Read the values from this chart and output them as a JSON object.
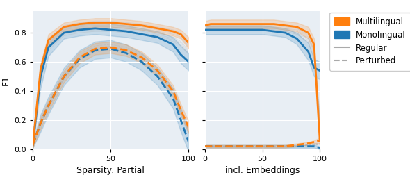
{
  "orange_color": "#FF7F0E",
  "blue_color": "#1F77B4",
  "gray_color": "#aaaaaa",
  "fill_alpha": 0.18,
  "gray_fill_alpha": 0.12,
  "line_alpha_individual": 0.25,
  "lw_main": 2.0,
  "lw_ind": 0.7,
  "left_x": [
    0,
    5,
    10,
    20,
    30,
    40,
    50,
    60,
    70,
    80,
    90,
    95,
    100
  ],
  "left_orange_solid_mean": [
    0.03,
    0.55,
    0.75,
    0.84,
    0.86,
    0.87,
    0.87,
    0.86,
    0.85,
    0.83,
    0.81,
    0.79,
    0.73
  ],
  "left_orange_solid_upper": [
    0.05,
    0.59,
    0.79,
    0.87,
    0.89,
    0.9,
    0.9,
    0.89,
    0.88,
    0.86,
    0.84,
    0.82,
    0.77
  ],
  "left_orange_solid_lower": [
    0.01,
    0.51,
    0.71,
    0.81,
    0.83,
    0.84,
    0.84,
    0.83,
    0.82,
    0.8,
    0.78,
    0.76,
    0.69
  ],
  "left_blue_solid_mean": [
    0.03,
    0.5,
    0.7,
    0.8,
    0.82,
    0.83,
    0.82,
    0.81,
    0.79,
    0.77,
    0.72,
    0.65,
    0.6
  ],
  "left_blue_solid_upper": [
    0.05,
    0.58,
    0.76,
    0.84,
    0.86,
    0.87,
    0.86,
    0.85,
    0.83,
    0.81,
    0.77,
    0.71,
    0.66
  ],
  "left_blue_solid_lower": [
    0.01,
    0.42,
    0.64,
    0.76,
    0.78,
    0.79,
    0.78,
    0.77,
    0.75,
    0.73,
    0.67,
    0.59,
    0.54
  ],
  "left_orange_dashed_mean": [
    0.03,
    0.18,
    0.3,
    0.5,
    0.63,
    0.69,
    0.7,
    0.68,
    0.63,
    0.54,
    0.4,
    0.27,
    0.15
  ],
  "left_orange_dashed_upper": [
    0.05,
    0.22,
    0.34,
    0.54,
    0.67,
    0.73,
    0.74,
    0.72,
    0.67,
    0.58,
    0.44,
    0.31,
    0.19
  ],
  "left_orange_dashed_lower": [
    0.01,
    0.14,
    0.26,
    0.46,
    0.59,
    0.65,
    0.66,
    0.64,
    0.59,
    0.5,
    0.36,
    0.23,
    0.11
  ],
  "left_blue_dashed_mean": [
    0.03,
    0.18,
    0.3,
    0.5,
    0.62,
    0.68,
    0.69,
    0.66,
    0.6,
    0.5,
    0.35,
    0.2,
    0.05
  ],
  "left_blue_dashed_upper": [
    0.05,
    0.24,
    0.36,
    0.56,
    0.68,
    0.74,
    0.75,
    0.72,
    0.66,
    0.56,
    0.42,
    0.28,
    0.12
  ],
  "left_blue_dashed_lower": [
    0.01,
    0.12,
    0.24,
    0.44,
    0.56,
    0.62,
    0.63,
    0.6,
    0.54,
    0.44,
    0.28,
    0.12,
    -0.02
  ],
  "left_gray_solid_lines": [
    [
      0.03,
      0.53,
      0.72,
      0.82,
      0.84,
      0.85,
      0.85,
      0.84,
      0.83,
      0.81,
      0.79,
      0.77,
      0.7
    ],
    [
      0.03,
      0.56,
      0.75,
      0.84,
      0.86,
      0.87,
      0.87,
      0.86,
      0.85,
      0.83,
      0.81,
      0.79,
      0.72
    ],
    [
      0.03,
      0.51,
      0.7,
      0.8,
      0.82,
      0.83,
      0.83,
      0.82,
      0.81,
      0.79,
      0.76,
      0.73,
      0.67
    ],
    [
      0.03,
      0.54,
      0.73,
      0.83,
      0.85,
      0.86,
      0.86,
      0.85,
      0.84,
      0.82,
      0.8,
      0.78,
      0.71
    ],
    [
      0.03,
      0.48,
      0.68,
      0.78,
      0.8,
      0.81,
      0.81,
      0.8,
      0.79,
      0.77,
      0.74,
      0.71,
      0.65
    ],
    [
      0.03,
      0.57,
      0.76,
      0.85,
      0.87,
      0.88,
      0.88,
      0.87,
      0.86,
      0.84,
      0.82,
      0.8,
      0.74
    ],
    [
      0.03,
      0.5,
      0.69,
      0.79,
      0.81,
      0.82,
      0.82,
      0.81,
      0.8,
      0.78,
      0.75,
      0.72,
      0.66
    ],
    [
      0.03,
      0.52,
      0.71,
      0.81,
      0.83,
      0.84,
      0.84,
      0.83,
      0.82,
      0.8,
      0.77,
      0.74,
      0.68
    ]
  ],
  "left_gray_dashed_lines": [
    [
      0.03,
      0.17,
      0.29,
      0.49,
      0.62,
      0.68,
      0.69,
      0.67,
      0.62,
      0.52,
      0.38,
      0.25,
      0.13
    ],
    [
      0.03,
      0.19,
      0.31,
      0.51,
      0.64,
      0.7,
      0.71,
      0.69,
      0.64,
      0.55,
      0.41,
      0.28,
      0.16
    ],
    [
      0.03,
      0.16,
      0.28,
      0.48,
      0.61,
      0.67,
      0.68,
      0.66,
      0.61,
      0.51,
      0.37,
      0.24,
      0.12
    ],
    [
      0.03,
      0.18,
      0.3,
      0.5,
      0.63,
      0.69,
      0.7,
      0.68,
      0.63,
      0.53,
      0.39,
      0.26,
      0.14
    ],
    [
      0.03,
      0.17,
      0.29,
      0.49,
      0.62,
      0.68,
      0.69,
      0.67,
      0.62,
      0.52,
      0.38,
      0.25,
      0.13
    ],
    [
      0.03,
      0.2,
      0.32,
      0.52,
      0.65,
      0.71,
      0.72,
      0.7,
      0.65,
      0.56,
      0.42,
      0.29,
      0.17
    ],
    [
      0.03,
      0.16,
      0.28,
      0.48,
      0.61,
      0.67,
      0.68,
      0.66,
      0.6,
      0.5,
      0.36,
      0.23,
      0.11
    ],
    [
      0.03,
      0.18,
      0.3,
      0.5,
      0.63,
      0.69,
      0.7,
      0.68,
      0.63,
      0.53,
      0.39,
      0.26,
      0.14
    ]
  ],
  "right_x": [
    0,
    5,
    10,
    20,
    30,
    40,
    50,
    60,
    70,
    80,
    90,
    95,
    100
  ],
  "right_orange_solid_mean": [
    0.85,
    0.86,
    0.86,
    0.86,
    0.86,
    0.86,
    0.86,
    0.86,
    0.85,
    0.84,
    0.8,
    0.72,
    0.06
  ],
  "right_orange_solid_upper": [
    0.88,
    0.89,
    0.89,
    0.89,
    0.89,
    0.89,
    0.89,
    0.89,
    0.88,
    0.87,
    0.84,
    0.76,
    0.09
  ],
  "right_orange_solid_lower": [
    0.82,
    0.83,
    0.83,
    0.83,
    0.83,
    0.83,
    0.83,
    0.83,
    0.82,
    0.81,
    0.76,
    0.68,
    0.03
  ],
  "right_blue_solid_mean": [
    0.82,
    0.82,
    0.82,
    0.82,
    0.82,
    0.82,
    0.82,
    0.81,
    0.8,
    0.76,
    0.67,
    0.56,
    0.54
  ],
  "right_blue_solid_upper": [
    0.85,
    0.85,
    0.85,
    0.85,
    0.85,
    0.85,
    0.85,
    0.84,
    0.83,
    0.8,
    0.73,
    0.62,
    0.6
  ],
  "right_blue_solid_lower": [
    0.79,
    0.79,
    0.79,
    0.79,
    0.79,
    0.79,
    0.79,
    0.78,
    0.77,
    0.72,
    0.61,
    0.5,
    0.48
  ],
  "right_orange_dashed_mean": [
    0.02,
    0.02,
    0.02,
    0.02,
    0.02,
    0.02,
    0.02,
    0.02,
    0.02,
    0.03,
    0.04,
    0.05,
    0.06
  ],
  "right_orange_dashed_upper": [
    0.03,
    0.03,
    0.03,
    0.03,
    0.03,
    0.03,
    0.03,
    0.03,
    0.03,
    0.04,
    0.05,
    0.06,
    0.08
  ],
  "right_orange_dashed_lower": [
    0.01,
    0.01,
    0.01,
    0.01,
    0.01,
    0.01,
    0.01,
    0.01,
    0.01,
    0.02,
    0.03,
    0.04,
    0.04
  ],
  "right_blue_dashed_mean": [
    0.02,
    0.02,
    0.02,
    0.02,
    0.02,
    0.02,
    0.02,
    0.02,
    0.02,
    0.02,
    0.02,
    0.02,
    0.01
  ],
  "right_blue_dashed_upper": [
    0.03,
    0.03,
    0.03,
    0.03,
    0.03,
    0.03,
    0.03,
    0.03,
    0.03,
    0.03,
    0.03,
    0.03,
    0.02
  ],
  "right_blue_dashed_lower": [
    0.01,
    0.01,
    0.01,
    0.01,
    0.01,
    0.01,
    0.01,
    0.01,
    0.01,
    0.01,
    0.01,
    0.01,
    0.0
  ],
  "right_gray_solid_lines": [
    [
      0.84,
      0.84,
      0.84,
      0.84,
      0.84,
      0.84,
      0.84,
      0.84,
      0.83,
      0.82,
      0.77,
      0.68,
      0.2
    ],
    [
      0.85,
      0.85,
      0.85,
      0.85,
      0.85,
      0.85,
      0.85,
      0.85,
      0.84,
      0.83,
      0.79,
      0.71,
      0.25
    ],
    [
      0.83,
      0.83,
      0.83,
      0.83,
      0.83,
      0.83,
      0.83,
      0.83,
      0.82,
      0.8,
      0.75,
      0.65,
      0.18
    ],
    [
      0.84,
      0.84,
      0.84,
      0.84,
      0.84,
      0.84,
      0.84,
      0.83,
      0.82,
      0.8,
      0.76,
      0.67,
      0.22
    ],
    [
      0.83,
      0.83,
      0.83,
      0.83,
      0.83,
      0.83,
      0.83,
      0.82,
      0.81,
      0.79,
      0.74,
      0.64,
      0.17
    ],
    [
      0.85,
      0.86,
      0.86,
      0.86,
      0.86,
      0.86,
      0.86,
      0.86,
      0.85,
      0.83,
      0.78,
      0.69,
      0.23
    ],
    [
      0.82,
      0.82,
      0.82,
      0.82,
      0.82,
      0.82,
      0.82,
      0.82,
      0.81,
      0.79,
      0.73,
      0.63,
      0.15
    ],
    [
      0.84,
      0.84,
      0.84,
      0.84,
      0.84,
      0.84,
      0.84,
      0.84,
      0.83,
      0.81,
      0.76,
      0.66,
      0.19
    ]
  ],
  "right_gray_dashed_lines": [
    [
      0.02,
      0.02,
      0.02,
      0.02,
      0.02,
      0.02,
      0.02,
      0.02,
      0.02,
      0.02,
      0.03,
      0.03,
      0.03
    ],
    [
      0.02,
      0.02,
      0.02,
      0.02,
      0.02,
      0.02,
      0.02,
      0.02,
      0.02,
      0.02,
      0.03,
      0.04,
      0.04
    ],
    [
      0.02,
      0.02,
      0.02,
      0.02,
      0.02,
      0.02,
      0.02,
      0.02,
      0.02,
      0.02,
      0.02,
      0.03,
      0.03
    ],
    [
      0.02,
      0.02,
      0.02,
      0.02,
      0.02,
      0.02,
      0.02,
      0.02,
      0.02,
      0.02,
      0.03,
      0.03,
      0.03
    ],
    [
      0.02,
      0.02,
      0.02,
      0.02,
      0.02,
      0.02,
      0.02,
      0.02,
      0.02,
      0.02,
      0.02,
      0.02,
      0.02
    ],
    [
      0.02,
      0.02,
      0.02,
      0.02,
      0.02,
      0.02,
      0.02,
      0.02,
      0.02,
      0.02,
      0.03,
      0.04,
      0.04
    ],
    [
      0.02,
      0.02,
      0.02,
      0.02,
      0.02,
      0.02,
      0.02,
      0.02,
      0.02,
      0.02,
      0.02,
      0.02,
      0.02
    ],
    [
      0.02,
      0.02,
      0.02,
      0.02,
      0.02,
      0.02,
      0.02,
      0.02,
      0.02,
      0.02,
      0.03,
      0.03,
      0.03
    ]
  ],
  "ylabel": "F1",
  "xlabel_left": "Sparsity: Partial",
  "xlabel_right": "incl. Embeddings",
  "legend_labels": [
    "Multilingual",
    "Monolingual",
    "Regular",
    "Perturbed"
  ],
  "xlim": [
    0,
    100
  ],
  "ylim": [
    0.0,
    0.95
  ],
  "xticks": [
    0,
    50,
    100
  ],
  "yticks": [
    0.0,
    0.2,
    0.4,
    0.6,
    0.8
  ],
  "bg_color": "#e8eef4"
}
